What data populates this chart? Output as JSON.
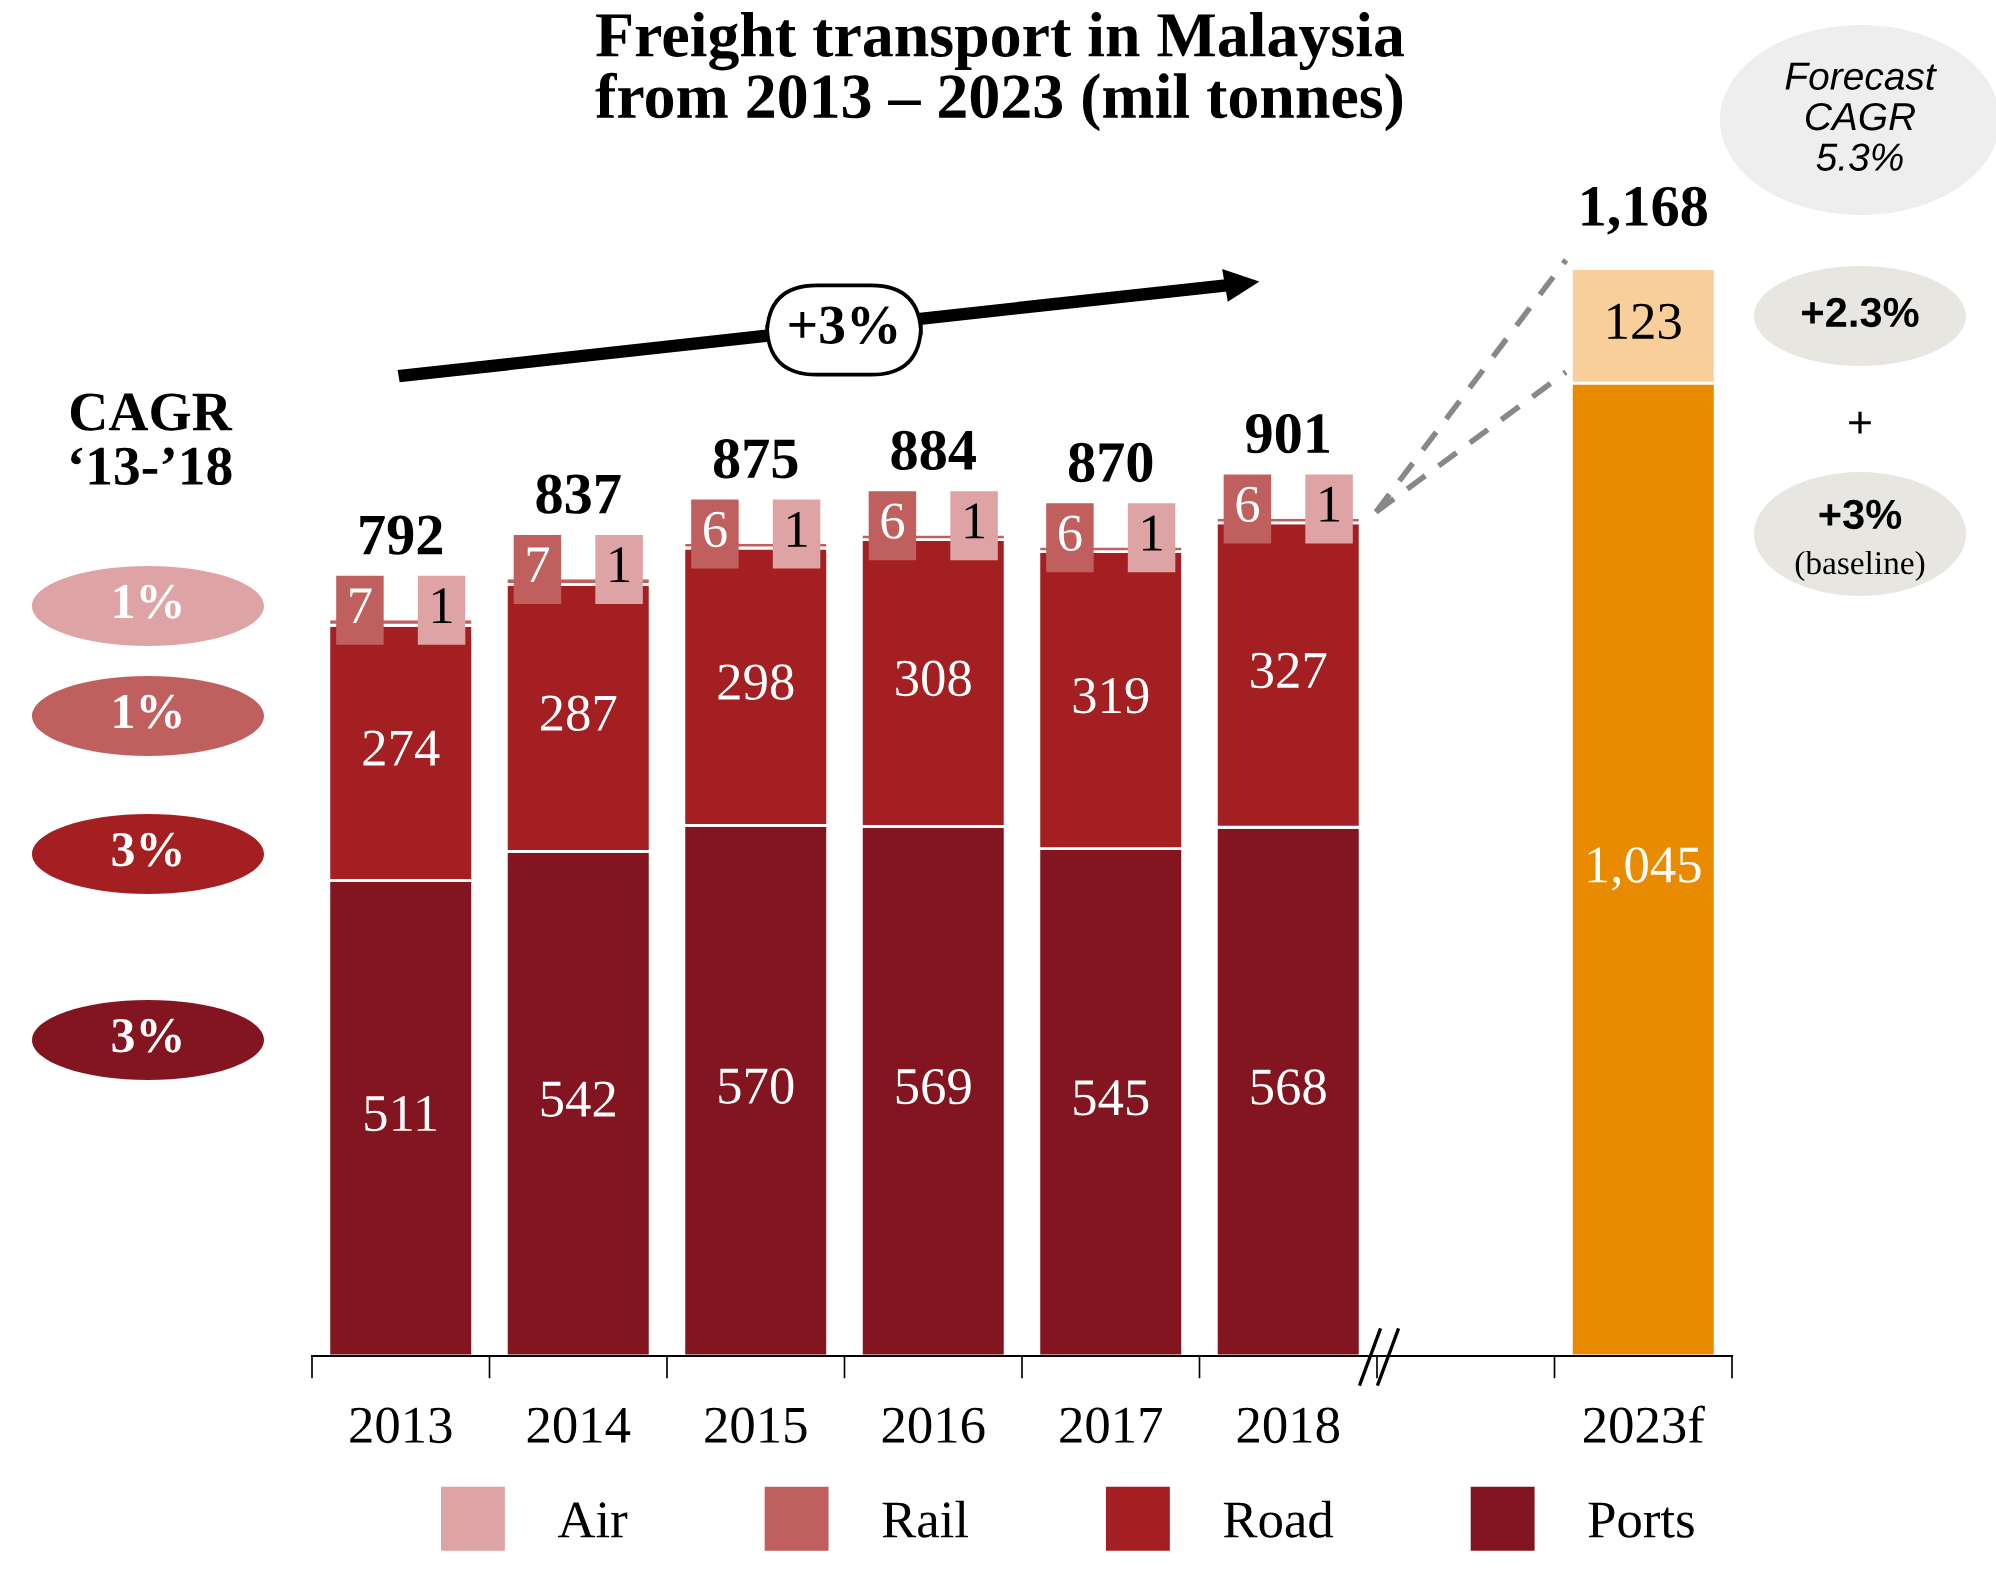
{
  "chart_data": {
    "type": "bar",
    "stacked": true,
    "title": "Freight transport in Malaysia\nfrom 2013 – 2023 (mil tonnes)",
    "categories": [
      "2013",
      "2014",
      "2015",
      "2016",
      "2017",
      "2018",
      null,
      "2023f"
    ],
    "series": [
      {
        "name": "Ports",
        "color": "#82151f",
        "values": [
          511,
          542,
          570,
          569,
          545,
          568,
          null,
          null
        ],
        "value_labels": [
          "511",
          "542",
          "570",
          "569",
          "545",
          "568",
          null,
          null
        ]
      },
      {
        "name": "Road",
        "color": "#a31f22",
        "values": [
          274,
          287,
          298,
          308,
          319,
          327,
          null,
          null
        ],
        "value_labels": [
          "274",
          "287",
          "298",
          "308",
          "319",
          "327",
          null,
          null
        ]
      },
      {
        "name": "Rail",
        "color": "#c0605e",
        "values": [
          7,
          7,
          6,
          6,
          6,
          6,
          null,
          null
        ],
        "value_labels": [
          "7",
          "7",
          "6",
          "6",
          "6",
          "6",
          null,
          null
        ]
      },
      {
        "name": "Air",
        "color": "#dea3a5",
        "values": [
          1,
          1,
          1,
          1,
          1,
          1,
          null,
          null
        ],
        "value_labels": [
          "1",
          "1",
          "1",
          "1",
          "1",
          "1",
          null,
          null
        ]
      },
      {
        "color": "#e98b00",
        "values": [
          null,
          null,
          null,
          null,
          null,
          null,
          null,
          1045
        ],
        "value_labels": [
          null,
          null,
          null,
          null,
          null,
          null,
          null,
          "1,045"
        ]
      },
      {
        "color": "#f8cf9a",
        "values": [
          null,
          null,
          null,
          null,
          null,
          null,
          null,
          123
        ],
        "value_labels": [
          null,
          null,
          null,
          null,
          null,
          null,
          null,
          "123"
        ]
      }
    ],
    "totals": [
      "792",
      "837",
      "875",
      "884",
      "870",
      "901",
      null,
      "1,168"
    ],
    "annotations": [
      "CAGR\n‘13-’18",
      "1%",
      "1%",
      "3%",
      "3%",
      "+3%",
      "Forecast\nCAGR\n5.3%",
      "+2.3%",
      "+",
      "+3%",
      "(baseline)"
    ],
    "legend": "bottom",
    "grid": false
  }
}
